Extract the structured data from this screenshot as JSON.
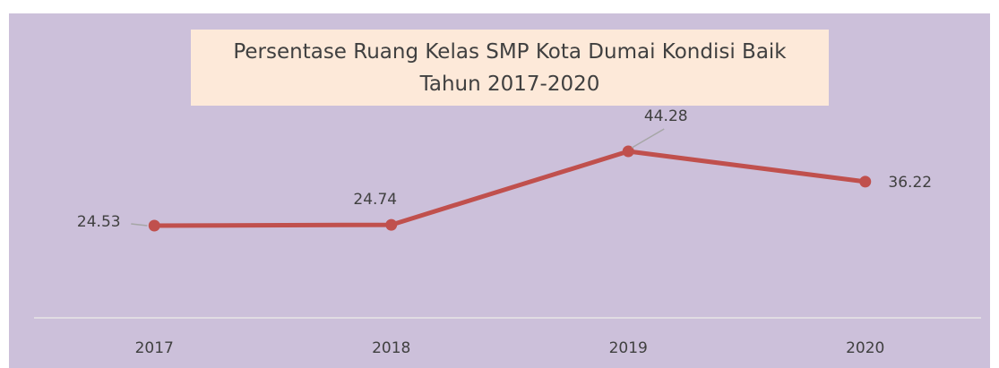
{
  "chart_data": {
    "type": "line",
    "title": "Persentase Ruang Kelas SMP Kota Dumai Kondisi Baik Tahun 2017-2020",
    "categories": [
      "2017",
      "2018",
      "2019",
      "2020"
    ],
    "series": [
      {
        "name": "Persentase",
        "color": "#c0504d",
        "values": [
          24.53,
          24.74,
          44.28,
          36.22
        ]
      }
    ],
    "ylim": [
      0,
      50
    ],
    "grid": false
  }
}
